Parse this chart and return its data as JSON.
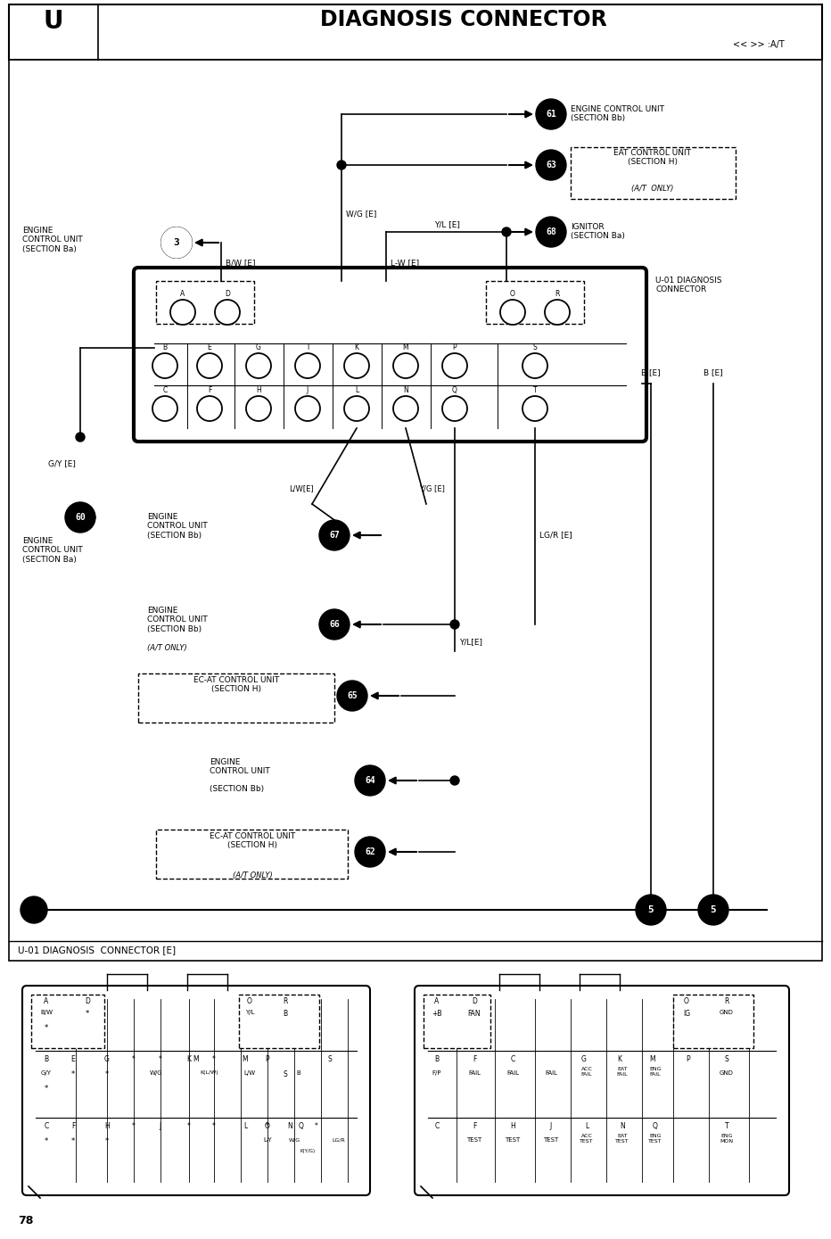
{
  "title": "DIAGNOSIS CONNECTOR",
  "title_letter": "U",
  "page_num": "78",
  "nav": "<< >> :A/T",
  "bg_color": "#ffffff",
  "connector_label": "U-01 DIAGNOSIS\nCONNECTOR"
}
